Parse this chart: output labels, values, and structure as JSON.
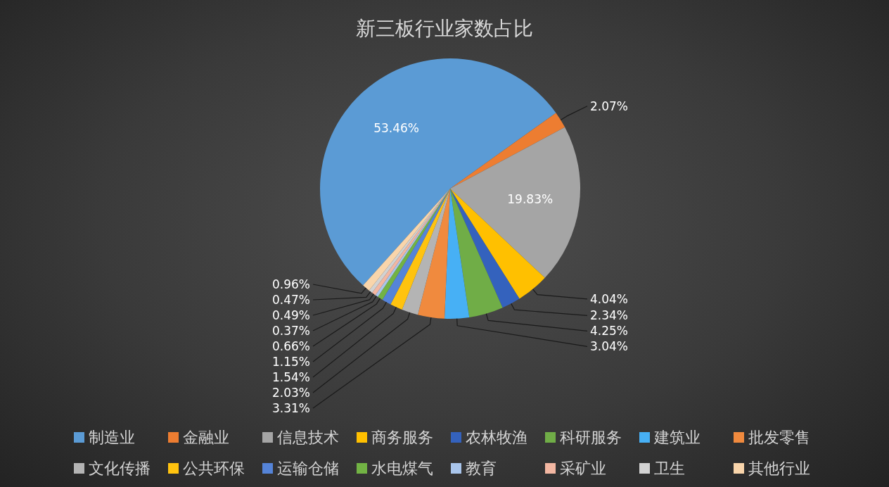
{
  "chart_data": {
    "type": "pie",
    "title": "新三板行业家数占比",
    "categories": [
      "制造业",
      "金融业",
      "信息技术",
      "商务服务",
      "农林牧渔",
      "科研服务",
      "建筑业",
      "批发零售",
      "文化传播",
      "公共环保",
      "运输仓储",
      "水电煤气",
      "教育",
      "采矿业",
      "卫生",
      "其他行业"
    ],
    "values": [
      53.46,
      2.07,
      19.83,
      4.04,
      2.34,
      4.25,
      3.04,
      3.31,
      2.03,
      1.54,
      1.15,
      0.66,
      0.37,
      0.49,
      0.47,
      0.96
    ],
    "value_labels": [
      "53.46%",
      "2.07%",
      "19.83%",
      "4.04%",
      "2.34%",
      "4.25%",
      "3.04%",
      "3.31%",
      "2.03%",
      "1.54%",
      "1.15%",
      "0.66%",
      "0.37%",
      "0.49%",
      "0.47%",
      "0.96%"
    ],
    "colors": [
      "#5b9bd5",
      "#ed7d31",
      "#a5a5a5",
      "#ffc000",
      "#3462bd",
      "#70ad47",
      "#47b0f5",
      "#f08a3e",
      "#b4b4b4",
      "#ffc30f",
      "#5584d8",
      "#72b344",
      "#a9c5eb",
      "#f3b7a2",
      "#d2d2d2",
      "#f9d5ab"
    ],
    "legend": "bottom"
  }
}
